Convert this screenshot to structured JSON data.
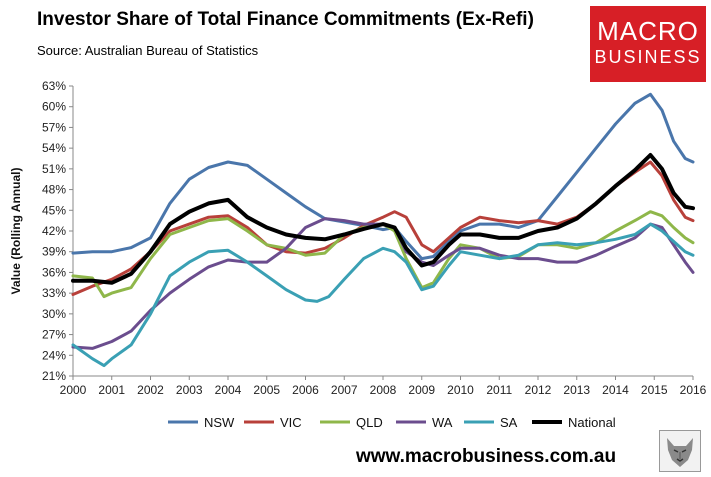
{
  "header": {
    "title": "Investor Share of Total Finance Commitments (Ex-Refi)",
    "subtitle": "Source: Australian Bureau of Statistics"
  },
  "logo": {
    "line1": "MACRO",
    "line2": "BUSINESS",
    "color": "#d71f26"
  },
  "footer": {
    "website": "www.macrobusiness.com.au"
  },
  "chart_data": {
    "type": "line",
    "title": "Investor Share of Total Finance Commitments (Ex-Refi)",
    "xlabel": "",
    "ylabel": "Value (Rolling Annual)",
    "xlim": [
      2000,
      2016
    ],
    "ylim": [
      21,
      63
    ],
    "x_ticks": [
      "2000",
      "2001",
      "2002",
      "2003",
      "2004",
      "2005",
      "2006",
      "2007",
      "2008",
      "2009",
      "2010",
      "2011",
      "2012",
      "2013",
      "2014",
      "2015",
      "2016"
    ],
    "y_ticks": [
      "21%",
      "24%",
      "27%",
      "30%",
      "33%",
      "36%",
      "39%",
      "42%",
      "45%",
      "48%",
      "51%",
      "54%",
      "57%",
      "60%",
      "63%"
    ],
    "grid": false,
    "legend_position": "bottom",
    "series": [
      {
        "name": "NSW",
        "color": "#4a76ab",
        "width": 3,
        "points": [
          [
            2000,
            38.8
          ],
          [
            2000.5,
            39.0
          ],
          [
            2001,
            39.0
          ],
          [
            2001.5,
            39.6
          ],
          [
            2002,
            41.0
          ],
          [
            2002.5,
            46.0
          ],
          [
            2003,
            49.5
          ],
          [
            2003.5,
            51.2
          ],
          [
            2004,
            52.0
          ],
          [
            2004.5,
            51.5
          ],
          [
            2005,
            49.5
          ],
          [
            2005.5,
            47.5
          ],
          [
            2006,
            45.5
          ],
          [
            2006.5,
            43.8
          ],
          [
            2007,
            43.3
          ],
          [
            2007.5,
            42.8
          ],
          [
            2008,
            42.2
          ],
          [
            2008.3,
            42.5
          ],
          [
            2008.6,
            40.5
          ],
          [
            2009,
            38.0
          ],
          [
            2009.3,
            38.3
          ],
          [
            2009.7,
            40.5
          ],
          [
            2010,
            42.0
          ],
          [
            2010.5,
            43.0
          ],
          [
            2011,
            43.0
          ],
          [
            2011.5,
            42.5
          ],
          [
            2012,
            43.5
          ],
          [
            2012.5,
            47.0
          ],
          [
            2013,
            50.5
          ],
          [
            2013.5,
            54.0
          ],
          [
            2014,
            57.5
          ],
          [
            2014.5,
            60.5
          ],
          [
            2014.9,
            61.8
          ],
          [
            2015.2,
            59.5
          ],
          [
            2015.5,
            55.0
          ],
          [
            2015.8,
            52.5
          ],
          [
            2016,
            52.0
          ]
        ]
      },
      {
        "name": "VIC",
        "color": "#b8403a",
        "width": 3,
        "points": [
          [
            2000,
            32.8
          ],
          [
            2000.5,
            34.0
          ],
          [
            2001,
            35.0
          ],
          [
            2001.5,
            36.5
          ],
          [
            2002,
            39.0
          ],
          [
            2002.5,
            42.0
          ],
          [
            2003,
            43.0
          ],
          [
            2003.5,
            44.0
          ],
          [
            2004,
            44.2
          ],
          [
            2004.5,
            42.5
          ],
          [
            2005,
            40.0
          ],
          [
            2005.5,
            39.0
          ],
          [
            2006,
            38.8
          ],
          [
            2006.5,
            39.5
          ],
          [
            2007,
            41.0
          ],
          [
            2007.5,
            42.8
          ],
          [
            2008,
            44.0
          ],
          [
            2008.3,
            44.8
          ],
          [
            2008.6,
            44.0
          ],
          [
            2009,
            40.0
          ],
          [
            2009.3,
            39.0
          ],
          [
            2009.7,
            41.0
          ],
          [
            2010,
            42.5
          ],
          [
            2010.5,
            44.0
          ],
          [
            2011,
            43.5
          ],
          [
            2011.5,
            43.2
          ],
          [
            2012,
            43.5
          ],
          [
            2012.5,
            43.0
          ],
          [
            2013,
            44.0
          ],
          [
            2013.5,
            46.0
          ],
          [
            2014,
            48.5
          ],
          [
            2014.5,
            50.5
          ],
          [
            2014.9,
            52.0
          ],
          [
            2015.2,
            50.0
          ],
          [
            2015.5,
            46.5
          ],
          [
            2015.8,
            44.0
          ],
          [
            2016,
            43.5
          ]
        ]
      },
      {
        "name": "QLD",
        "color": "#8fb74a",
        "width": 3,
        "points": [
          [
            2000,
            35.5
          ],
          [
            2000.5,
            35.2
          ],
          [
            2000.8,
            32.5
          ],
          [
            2001,
            33.0
          ],
          [
            2001.5,
            33.8
          ],
          [
            2002,
            38.0
          ],
          [
            2002.5,
            41.5
          ],
          [
            2003,
            42.5
          ],
          [
            2003.5,
            43.5
          ],
          [
            2004,
            43.8
          ],
          [
            2004.5,
            42.0
          ],
          [
            2005,
            40.0
          ],
          [
            2005.5,
            39.5
          ],
          [
            2006,
            38.5
          ],
          [
            2006.5,
            38.8
          ],
          [
            2007,
            41.5
          ],
          [
            2007.5,
            42.5
          ],
          [
            2008,
            43.0
          ],
          [
            2008.3,
            42.0
          ],
          [
            2008.6,
            38.0
          ],
          [
            2009,
            33.8
          ],
          [
            2009.3,
            34.5
          ],
          [
            2009.7,
            38.0
          ],
          [
            2010,
            40.0
          ],
          [
            2010.5,
            39.5
          ],
          [
            2011,
            38.0
          ],
          [
            2011.5,
            38.3
          ],
          [
            2012,
            40.0
          ],
          [
            2012.5,
            40.0
          ],
          [
            2013,
            39.5
          ],
          [
            2013.5,
            40.3
          ],
          [
            2014,
            42.0
          ],
          [
            2014.5,
            43.5
          ],
          [
            2014.9,
            44.8
          ],
          [
            2015.2,
            44.2
          ],
          [
            2015.5,
            42.5
          ],
          [
            2015.8,
            41.0
          ],
          [
            2016,
            40.3
          ]
        ]
      },
      {
        "name": "WA",
        "color": "#6b4d8e",
        "width": 3,
        "points": [
          [
            2000,
            25.2
          ],
          [
            2000.5,
            25.0
          ],
          [
            2001,
            26.0
          ],
          [
            2001.5,
            27.5
          ],
          [
            2002,
            30.5
          ],
          [
            2002.5,
            33.0
          ],
          [
            2003,
            35.0
          ],
          [
            2003.5,
            36.8
          ],
          [
            2004,
            37.8
          ],
          [
            2004.5,
            37.5
          ],
          [
            2005,
            37.5
          ],
          [
            2005.5,
            39.5
          ],
          [
            2006,
            42.5
          ],
          [
            2006.5,
            43.8
          ],
          [
            2007,
            43.5
          ],
          [
            2007.5,
            43.0
          ],
          [
            2008,
            43.0
          ],
          [
            2008.3,
            42.5
          ],
          [
            2008.6,
            39.0
          ],
          [
            2009,
            37.5
          ],
          [
            2009.3,
            37.0
          ],
          [
            2009.7,
            38.5
          ],
          [
            2010,
            39.5
          ],
          [
            2010.5,
            39.5
          ],
          [
            2011,
            38.5
          ],
          [
            2011.5,
            38.0
          ],
          [
            2012,
            38.0
          ],
          [
            2012.5,
            37.5
          ],
          [
            2013,
            37.5
          ],
          [
            2013.5,
            38.5
          ],
          [
            2014,
            39.8
          ],
          [
            2014.5,
            41.0
          ],
          [
            2014.9,
            43.0
          ],
          [
            2015.2,
            42.5
          ],
          [
            2015.5,
            40.0
          ],
          [
            2015.8,
            37.5
          ],
          [
            2016,
            36.0
          ]
        ]
      },
      {
        "name": "SA",
        "color": "#3aa0b4",
        "width": 3,
        "points": [
          [
            2000,
            25.5
          ],
          [
            2000.5,
            23.5
          ],
          [
            2000.8,
            22.5
          ],
          [
            2001,
            23.5
          ],
          [
            2001.5,
            25.5
          ],
          [
            2002,
            30.0
          ],
          [
            2002.5,
            35.5
          ],
          [
            2003,
            37.5
          ],
          [
            2003.5,
            39.0
          ],
          [
            2004,
            39.2
          ],
          [
            2004.5,
            37.5
          ],
          [
            2005,
            35.5
          ],
          [
            2005.5,
            33.5
          ],
          [
            2006,
            32.0
          ],
          [
            2006.3,
            31.8
          ],
          [
            2006.6,
            32.5
          ],
          [
            2007,
            35.0
          ],
          [
            2007.5,
            38.0
          ],
          [
            2008,
            39.5
          ],
          [
            2008.3,
            39.0
          ],
          [
            2008.6,
            37.5
          ],
          [
            2009,
            33.5
          ],
          [
            2009.3,
            34.0
          ],
          [
            2009.7,
            37.0
          ],
          [
            2010,
            39.0
          ],
          [
            2010.5,
            38.5
          ],
          [
            2011,
            38.0
          ],
          [
            2011.5,
            38.5
          ],
          [
            2012,
            40.0
          ],
          [
            2012.5,
            40.3
          ],
          [
            2013,
            40.0
          ],
          [
            2013.5,
            40.3
          ],
          [
            2014,
            40.8
          ],
          [
            2014.5,
            41.5
          ],
          [
            2014.9,
            43.0
          ],
          [
            2015.2,
            42.0
          ],
          [
            2015.5,
            40.5
          ],
          [
            2015.8,
            39.0
          ],
          [
            2016,
            38.5
          ]
        ]
      },
      {
        "name": "National",
        "color": "#000000",
        "width": 4,
        "points": [
          [
            2000,
            34.8
          ],
          [
            2000.5,
            34.8
          ],
          [
            2001,
            34.5
          ],
          [
            2001.5,
            35.8
          ],
          [
            2002,
            39.0
          ],
          [
            2002.5,
            43.0
          ],
          [
            2003,
            44.8
          ],
          [
            2003.5,
            46.0
          ],
          [
            2004,
            46.5
          ],
          [
            2004.5,
            44.0
          ],
          [
            2005,
            42.5
          ],
          [
            2005.5,
            41.5
          ],
          [
            2006,
            41.0
          ],
          [
            2006.5,
            40.8
          ],
          [
            2007,
            41.5
          ],
          [
            2007.5,
            42.3
          ],
          [
            2008,
            43.0
          ],
          [
            2008.3,
            42.5
          ],
          [
            2008.6,
            39.5
          ],
          [
            2009,
            37.0
          ],
          [
            2009.3,
            37.5
          ],
          [
            2009.7,
            40.0
          ],
          [
            2010,
            41.5
          ],
          [
            2010.5,
            41.5
          ],
          [
            2011,
            41.0
          ],
          [
            2011.5,
            41.0
          ],
          [
            2012,
            42.0
          ],
          [
            2012.5,
            42.5
          ],
          [
            2013,
            43.8
          ],
          [
            2013.5,
            46.0
          ],
          [
            2014,
            48.5
          ],
          [
            2014.5,
            50.8
          ],
          [
            2014.9,
            53.0
          ],
          [
            2015.2,
            51.0
          ],
          [
            2015.5,
            47.5
          ],
          [
            2015.8,
            45.5
          ],
          [
            2016,
            45.3
          ]
        ]
      }
    ]
  }
}
